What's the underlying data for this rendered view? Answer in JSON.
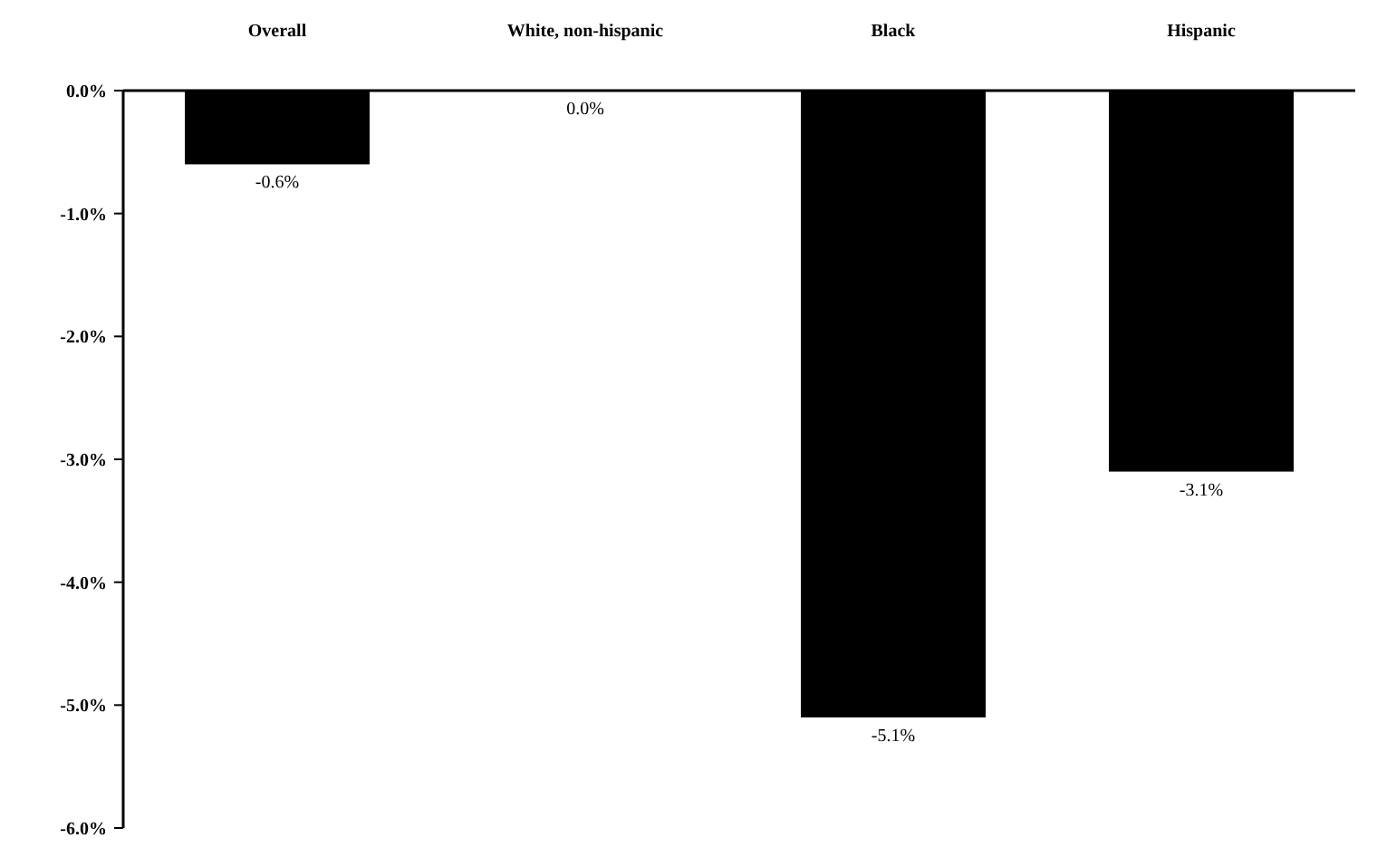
{
  "chart_data": {
    "type": "bar",
    "categories": [
      "Overall",
      "White, non-hispanic",
      "Black",
      "Hispanic"
    ],
    "values": [
      -0.6,
      0.0,
      -5.1,
      -3.1
    ],
    "value_labels": [
      "-0.6%",
      "0.0%",
      "-5.1%",
      "-3.1%"
    ],
    "color": "#000000",
    "ylim": [
      -6,
      0
    ],
    "yticks": [
      {
        "value": 0,
        "label": "0.0%"
      },
      {
        "value": -1,
        "label": "-1.0%"
      },
      {
        "value": -2,
        "label": "-2.0%"
      },
      {
        "value": -3,
        "label": "-3.0%"
      },
      {
        "value": -4,
        "label": "-4.0%"
      },
      {
        "value": -5,
        "label": "-5.0%"
      },
      {
        "value": -6,
        "label": "-6.0%"
      }
    ]
  }
}
